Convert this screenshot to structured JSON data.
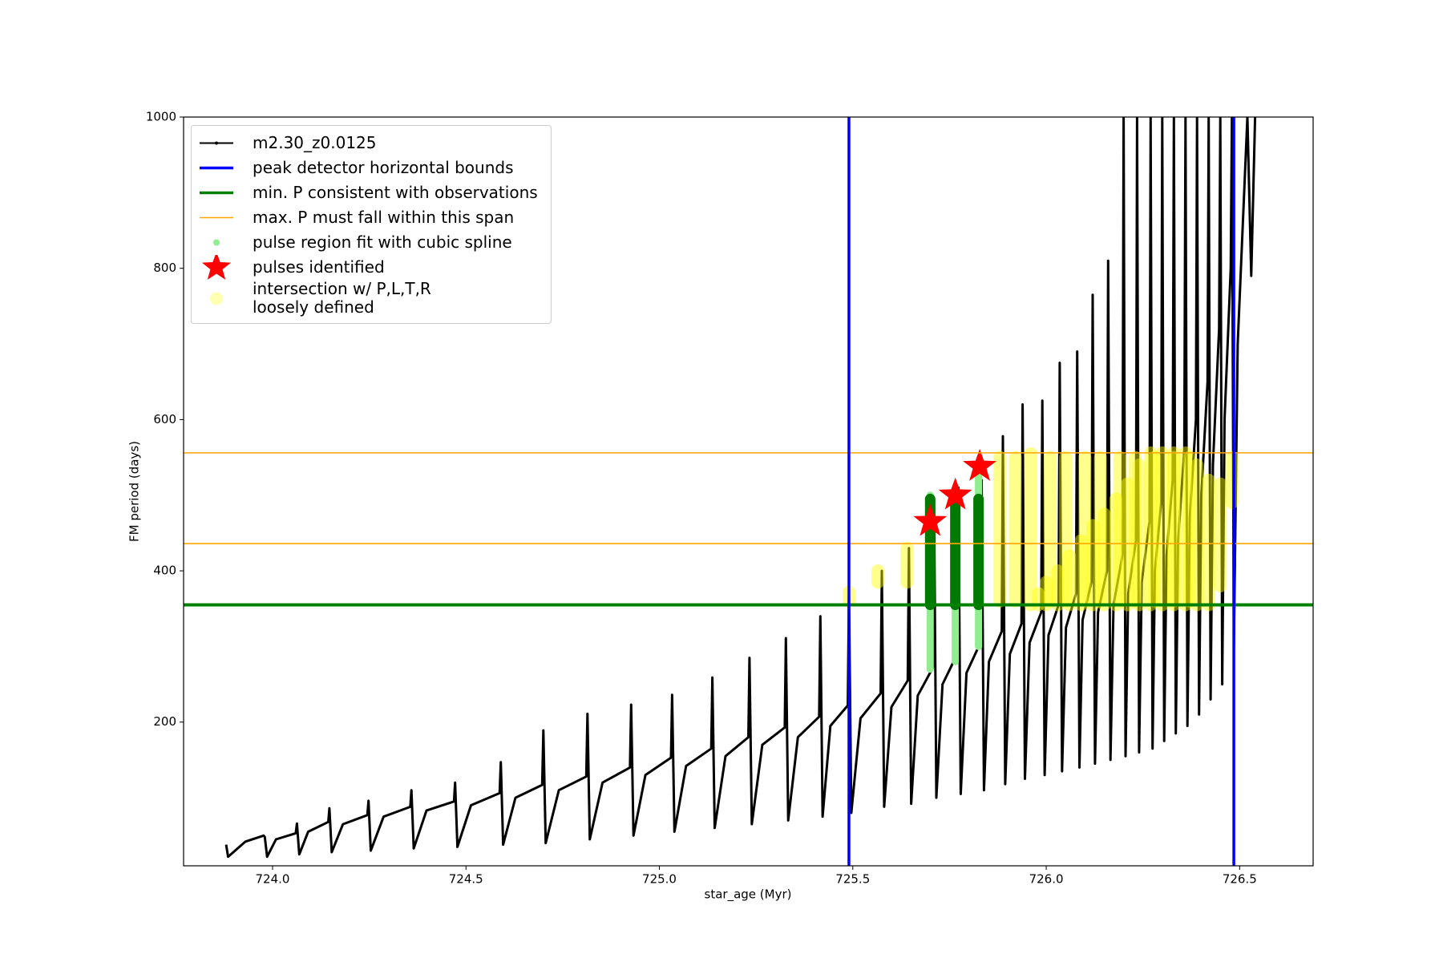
{
  "chart_data": {
    "type": "line",
    "xlabel": "star_age (Myr)",
    "ylabel": "FM period (days)",
    "xlim": [
      723.77,
      726.69
    ],
    "ylim": [
      10,
      1000
    ],
    "xticks": [
      {
        "value": 724.0,
        "label": "724.0"
      },
      724.5,
      {
        "value": 725.0,
        "label": "725.0"
      },
      725.5,
      {
        "value": 726.0,
        "label": "726.0"
      },
      726.5
    ],
    "yticks": [
      200,
      400,
      600,
      800,
      1000
    ],
    "legend": "upper left",
    "series": [
      {
        "name": "m2.30_z0.0125",
        "type": "line",
        "color": "#000000",
        "x": [
          723.88,
          723.885,
          723.93,
          723.977,
          723.98,
          723.986,
          724.009,
          724.06,
          724.063,
          724.069,
          724.092,
          724.144,
          724.147,
          724.153,
          724.182,
          724.245,
          724.248,
          724.254,
          724.287,
          724.356,
          724.359,
          724.365,
          724.398,
          724.469,
          724.472,
          724.478,
          724.513,
          724.587,
          724.59,
          724.596,
          724.628,
          724.697,
          724.7,
          724.706,
          724.74,
          724.811,
          724.814,
          724.82,
          724.853,
          724.924,
          724.927,
          724.933,
          724.964,
          725.03,
          725.033,
          725.039,
          725.069,
          725.134,
          725.137,
          725.143,
          725.171,
          725.23,
          725.233,
          725.239,
          725.266,
          725.324,
          725.327,
          725.333,
          725.358,
          725.413,
          725.416,
          725.422,
          725.442,
          725.487,
          725.49,
          725.496,
          725.52,
          725.572,
          725.575,
          725.581,
          725.6,
          725.642,
          725.645,
          725.651,
          725.668,
          725.707,
          725.71,
          725.716,
          725.732,
          725.77,
          725.773,
          725.779,
          725.794,
          725.83,
          725.833,
          725.839,
          725.852,
          725.885,
          725.888,
          725.894,
          725.906,
          725.936,
          725.939,
          725.945,
          725.957,
          725.987,
          725.99,
          725.996,
          726.006,
          726.032,
          726.035,
          726.041,
          726.051,
          726.077,
          726.08,
          726.086,
          726.094,
          726.117,
          726.12,
          726.126,
          726.134,
          726.157,
          726.16,
          726.166,
          726.174,
          726.197,
          726.2,
          726.205,
          726.212,
          726.232,
          726.235,
          726.24,
          726.247,
          726.267,
          726.27,
          726.275,
          726.281,
          726.297,
          726.3,
          726.305,
          726.311,
          726.327,
          726.33,
          726.335,
          726.341,
          726.357,
          726.36,
          726.365,
          726.371,
          726.387,
          726.39,
          726.395,
          726.401,
          726.417,
          726.42,
          726.425,
          726.431,
          726.447,
          726.45,
          726.455,
          726.461,
          726.477,
          726.48,
          726.485,
          726.495,
          726.52,
          726.53,
          726.54
        ],
        "values": [
          38,
          22,
          42,
          50,
          48,
          22,
          45,
          53,
          66,
          25,
          55,
          68,
          86,
          28,
          65,
          77,
          96,
          30,
          75,
          88,
          110,
          33,
          83,
          95,
          120,
          35,
          90,
          106,
          147,
          38,
          100,
          117,
          189,
          40,
          110,
          128,
          211,
          45,
          120,
          140,
          223,
          50,
          130,
          153,
          236,
          55,
          142,
          165,
          259,
          60,
          155,
          180,
          285,
          65,
          170,
          193,
          311,
          70,
          180,
          207,
          340,
          75,
          195,
          222,
          370,
          80,
          205,
          238,
          400,
          88,
          220,
          255,
          430,
          92,
          235,
          272,
          495,
          100,
          250,
          290,
          510,
          105,
          265,
          305,
          520,
          110,
          280,
          320,
          578,
          118,
          290,
          330,
          620,
          125,
          305,
          345,
          625,
          130,
          315,
          355,
          675,
          135,
          325,
          370,
          690,
          140,
          335,
          385,
          765,
          145,
          345,
          400,
          810,
          150,
          355,
          420,
          1000,
          155,
          370,
          440,
          1000,
          160,
          385,
          465,
          1000,
          165,
          400,
          490,
          1000,
          175,
          420,
          520,
          1000,
          185,
          440,
          560,
          1000,
          195,
          470,
          600,
          1000,
          210,
          500,
          650,
          1000,
          230,
          540,
          720,
          1000,
          250,
          600,
          800,
          1000,
          300,
          700,
          1000,
          790,
          1000
        ]
      },
      {
        "name": "peak detector horizontal bounds",
        "type": "vline",
        "color": "#0000ff",
        "values": [
          725.49,
          726.485
        ]
      },
      {
        "name": "min. P consistent with observations",
        "type": "hline",
        "color": "#008000",
        "values": [
          355
        ]
      },
      {
        "name": "max. P must fall within this span",
        "type": "hline",
        "color": "#ffa500",
        "values": [
          436,
          556
        ]
      },
      {
        "name": "pulse region fit with cubic spline",
        "type": "column",
        "color": "#90ee90",
        "x": [
          725.7,
          725.765,
          725.825
        ],
        "values": [
          500,
          495,
          530
        ],
        "low": [
          270,
          280,
          300
        ]
      },
      {
        "name": "pulses identified",
        "type": "star",
        "color": "#ff0000",
        "x": [
          725.7,
          725.765,
          725.828
        ],
        "values": [
          465,
          500,
          538
        ]
      },
      {
        "name": "intersection w/ P,L,T,R\nloosely defined",
        "type": "column",
        "color": "#ffff00",
        "x": [
          725.49,
          725.565,
          725.64,
          725.88,
          725.92,
          725.96,
          726.01,
          726.05,
          726.1,
          726.14,
          726.19,
          726.23,
          726.28,
          726.33,
          726.37,
          725.98,
          726.0,
          726.03,
          726.06,
          726.09,
          726.12,
          726.15,
          726.18,
          726.21,
          726.24,
          726.27,
          726.3,
          726.33,
          726.36,
          726.39,
          726.42,
          726.45,
          726.48
        ],
        "values": [
          372,
          400,
          430,
          550,
          550,
          555,
          550,
          550,
          550,
          550,
          550,
          550,
          550,
          550,
          550,
          370,
          385,
          400,
          420,
          440,
          460,
          475,
          495,
          515,
          540,
          556,
          556,
          556,
          556,
          540,
          520,
          515,
          550
        ],
        "low": [
          360,
          385,
          385,
          360,
          360,
          355,
          360,
          360,
          360,
          360,
          360,
          360,
          360,
          360,
          360,
          355,
          355,
          355,
          355,
          355,
          355,
          355,
          355,
          355,
          355,
          355,
          355,
          355,
          355,
          355,
          355,
          380,
          490
        ]
      },
      {
        "type": "column",
        "color": "#007a00",
        "x": [
          725.7,
          725.765,
          725.825
        ],
        "values": [
          495,
          495,
          495
        ],
        "low": [
          355,
          355,
          355
        ]
      }
    ]
  }
}
